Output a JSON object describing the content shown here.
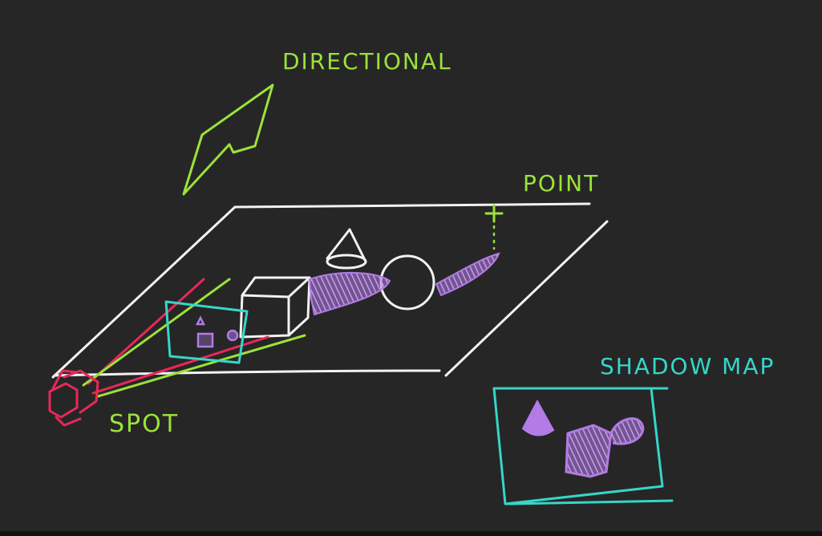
{
  "labels": {
    "directional": "DIRECTIONAL",
    "point": "POINT",
    "spot": "SPOT",
    "shadow_map": "SHADOW MAP"
  },
  "colors": {
    "background": "#262626",
    "chalk_white": "#f2f2f2",
    "directional_green": "#9be23a",
    "spot_red": "#e8285a",
    "shadow_map_cyan": "#36d6c8",
    "shadow_purple": "#b27be6"
  }
}
